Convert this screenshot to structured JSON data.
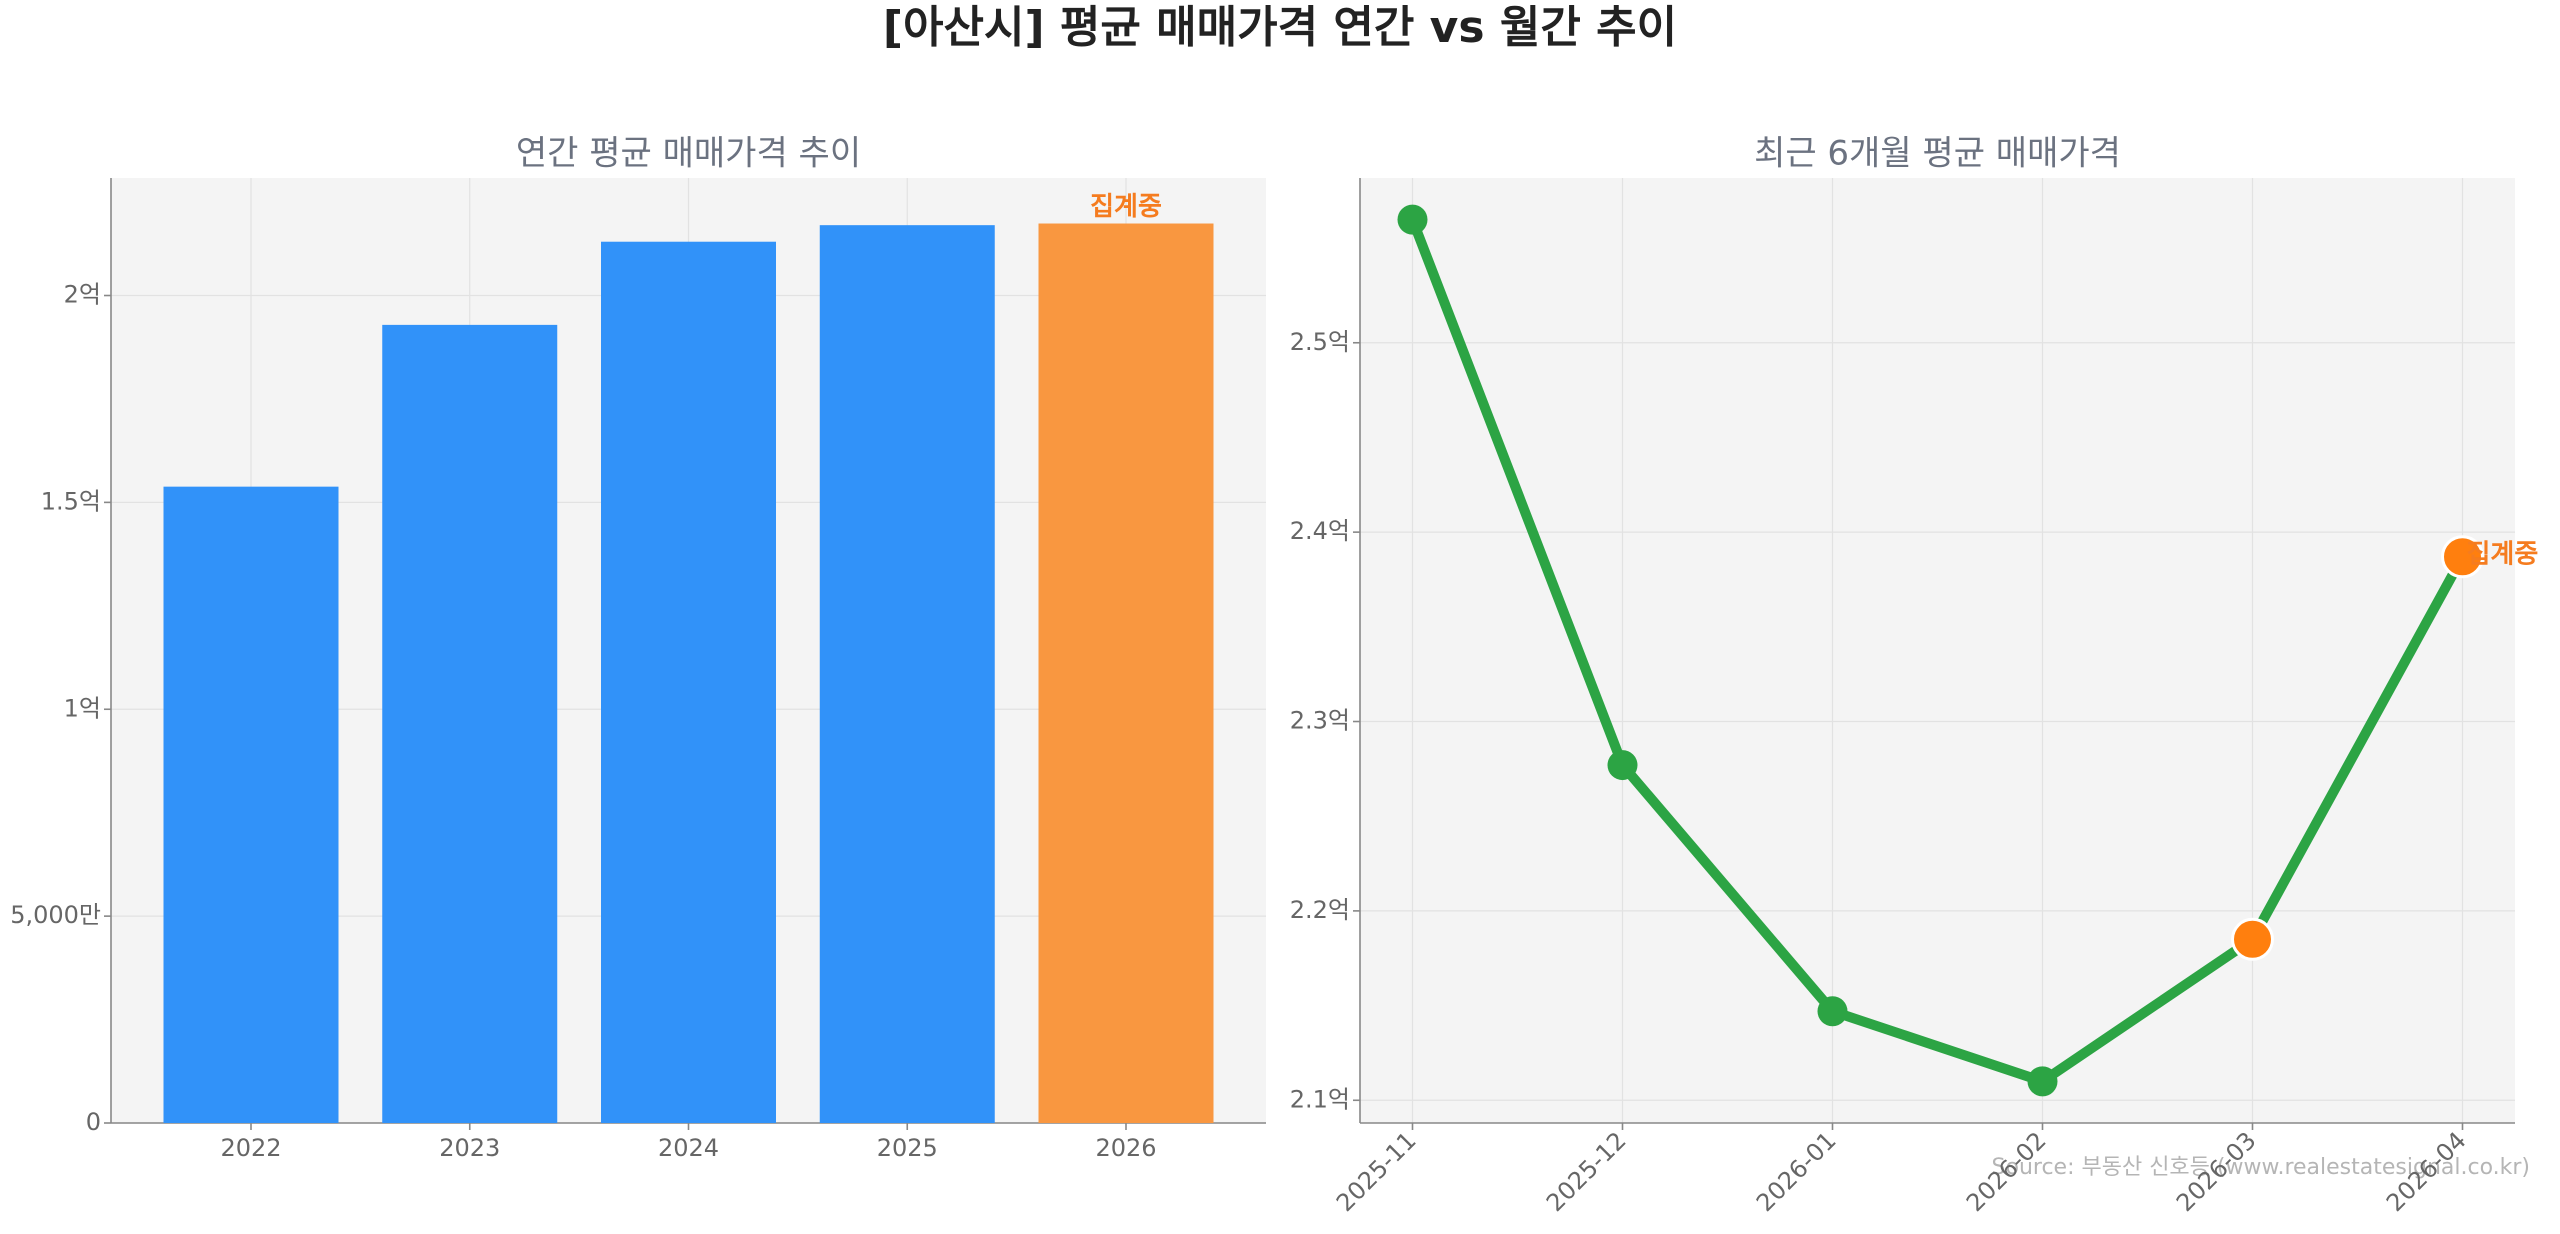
{
  "title": "[아산시] 평균 매매가격 연간 vs 월간 추이",
  "source": "Source: 부동산 신호등 (www.realestatesignal.co.kr)",
  "chart_data": [
    {
      "type": "bar",
      "title": "연간 평균 매매가격 추이",
      "categories": [
        "2022",
        "2023",
        "2024",
        "2025",
        "2026"
      ],
      "values": [
        153800000,
        192900000,
        213000000,
        217000000,
        217400000
      ],
      "colors": [
        "#3192f9",
        "#3192f9",
        "#3192f9",
        "#3192f9",
        "#f99740"
      ],
      "ylim": [
        0,
        228400000
      ],
      "yticks": [
        0,
        {
          "value": 50000000,
          "label": "5,000만"
        },
        {
          "value": 100000000,
          "label": "1억"
        },
        {
          "value": 150000000,
          "label": "1.5억"
        },
        {
          "value": 200000000,
          "label": "2억"
        }
      ],
      "grid": true,
      "annotations": [
        {
          "text": "집계중",
          "category": "2026",
          "color": "#f57c1f"
        }
      ]
    },
    {
      "type": "line",
      "title": "최근 6개월 평균 매매가격",
      "categories": [
        "2025-11",
        "2025-12",
        "2026-01",
        "2026-02",
        "2026-03",
        "2026-04"
      ],
      "values": [
        256500000,
        227700000,
        214700000,
        211000000,
        218500000,
        238700000
      ],
      "color": "#2ca444",
      "point_colors": [
        "#2ca444",
        "#2ca444",
        "#2ca444",
        "#2ca444",
        "#ff7f0e",
        "#ff7f0e"
      ],
      "ylim": [
        208800000,
        258700000
      ],
      "yticks": [
        {
          "value": 210000000,
          "label": "2.1억"
        },
        {
          "value": 220000000,
          "label": "2.2억"
        },
        {
          "value": 230000000,
          "label": "2.3억"
        },
        {
          "value": 240000000,
          "label": "2.4억"
        },
        {
          "value": 250000000,
          "label": "2.5억"
        }
      ],
      "grid": true,
      "annotations": [
        {
          "text": "집계중",
          "category": "2026-04",
          "color": "#f57c1f"
        }
      ]
    }
  ]
}
